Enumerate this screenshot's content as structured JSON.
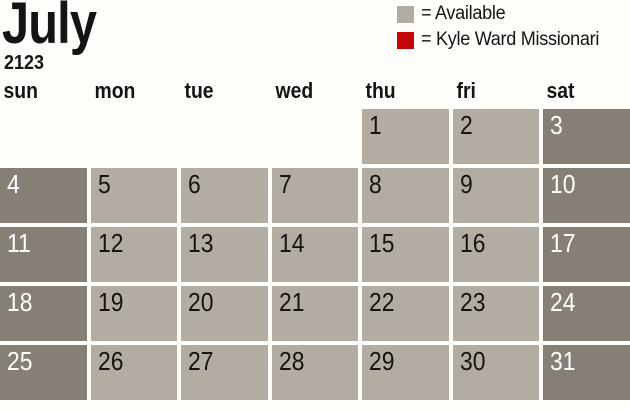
{
  "title": {
    "month": "July",
    "year": "2123"
  },
  "legend": {
    "items": [
      {
        "name": "available",
        "label": "= Available"
      },
      {
        "name": "kyle-ward-missionaries",
        "label": "= Kyle Ward Missionari"
      }
    ]
  },
  "weekday_headers": [
    "sun",
    "mon",
    "tue",
    "wed",
    "thu",
    "fri",
    "sat"
  ],
  "calendar": {
    "weeks": [
      [
        "",
        "",
        "",
        "",
        "1",
        "2",
        "3"
      ],
      [
        "4",
        "5",
        "6",
        "7",
        "8",
        "9",
        "10"
      ],
      [
        "11",
        "12",
        "13",
        "14",
        "15",
        "16",
        "17"
      ],
      [
        "18",
        "19",
        "20",
        "21",
        "22",
        "23",
        "24"
      ],
      [
        "25",
        "26",
        "27",
        "28",
        "29",
        "30",
        "31"
      ]
    ]
  },
  "colors": {
    "available": "#b3aca3",
    "weekend": "#857f76",
    "booked": "#c40808",
    "background": "#fdfefa",
    "day-text": "#141414",
    "weekend-text": "#ffffff"
  }
}
